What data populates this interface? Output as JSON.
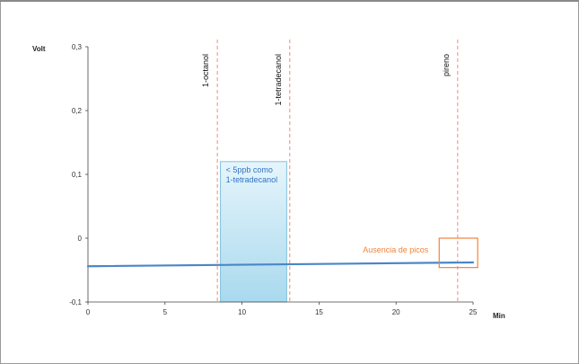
{
  "chart_data": {
    "type": "line",
    "xlabel": "Min",
    "ylabel": "Volt",
    "xlim": [
      0,
      25
    ],
    "ylim": [
      -0.1,
      0.3
    ],
    "xticks": [
      "0",
      "5",
      "10",
      "15",
      "20",
      "25"
    ],
    "yticks": [
      "-0,1",
      "0",
      "0,1",
      "0,2",
      "0,3"
    ],
    "grid": false,
    "series": [
      {
        "x": [
          0,
          25
        ],
        "y": [
          -0.044,
          -0.038
        ],
        "color": "#4a86c8"
      }
    ],
    "markers": [
      {
        "label": "1-octanol",
        "x": 8.4
      },
      {
        "label": "1-tetradecanol",
        "x": 13.1
      },
      {
        "label": "pireno",
        "x": 24.0
      }
    ],
    "regions": [
      {
        "label_lines": [
          "< 5ppb como",
          "1-tetradecanol"
        ],
        "x_start": 8.6,
        "x_end": 12.9,
        "y_start": -0.1,
        "y_end": 0.12
      }
    ],
    "annotations": [
      {
        "label": "Ausencia de picos",
        "x_start": 22.8,
        "x_end": 25.3,
        "y_start": -0.046,
        "y_end": 0.0
      }
    ],
    "colors": {
      "series": "#4a86c8",
      "marker_line": "#f08a7a",
      "region_fill": "#b9e0ef",
      "region_border": "#7ec2de",
      "region_text": "#2f73c4",
      "annotation": "#f0843c"
    }
  }
}
